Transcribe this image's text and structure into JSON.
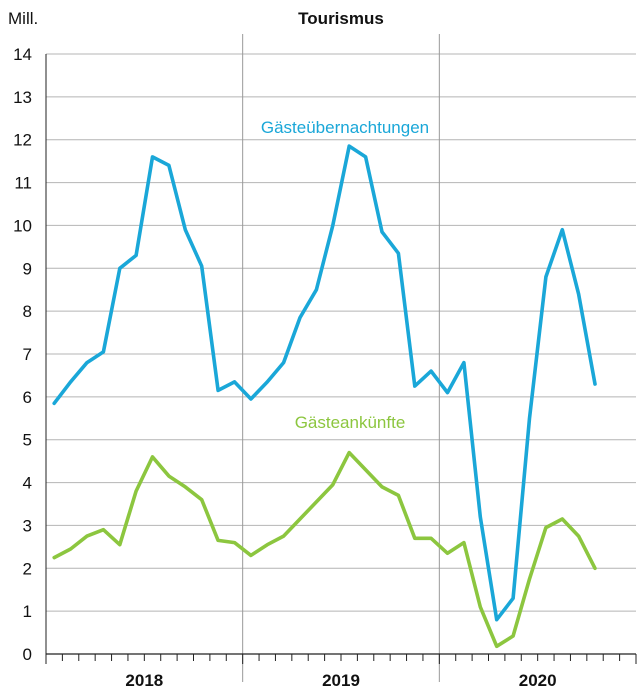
{
  "chart_data": {
    "type": "line",
    "title": "Tourismus",
    "ylabel": "Mill.",
    "ylim": [
      0,
      14
    ],
    "yticks": [
      0,
      1,
      2,
      3,
      4,
      5,
      6,
      7,
      8,
      9,
      10,
      11,
      12,
      13,
      14
    ],
    "grid": "horizontal",
    "years": [
      "2018",
      "2019",
      "2020"
    ],
    "months_per_year": 12,
    "series": [
      {
        "name": "Gästeübernachtungen",
        "color": "#1aa7d8",
        "values": [
          5.85,
          6.35,
          6.8,
          7.05,
          9.0,
          9.3,
          11.6,
          11.4,
          9.9,
          9.05,
          6.15,
          6.35,
          5.95,
          6.35,
          6.8,
          7.85,
          8.5,
          10.0,
          11.85,
          11.6,
          9.85,
          9.35,
          6.25,
          6.6,
          6.1,
          6.8,
          3.2,
          0.8,
          1.3,
          5.5,
          8.8,
          9.9,
          8.4,
          6.3
        ]
      },
      {
        "name": "Gästeankünfte",
        "color": "#8cc63f",
        "values": [
          2.25,
          2.45,
          2.75,
          2.9,
          2.55,
          3.8,
          4.6,
          4.15,
          3.9,
          3.6,
          2.65,
          2.6,
          2.3,
          2.55,
          2.75,
          3.15,
          3.55,
          3.95,
          4.7,
          4.3,
          3.9,
          3.7,
          2.7,
          2.7,
          2.35,
          2.6,
          1.1,
          0.18,
          0.42,
          1.75,
          2.95,
          3.15,
          2.75,
          2.0
        ]
      }
    ]
  }
}
